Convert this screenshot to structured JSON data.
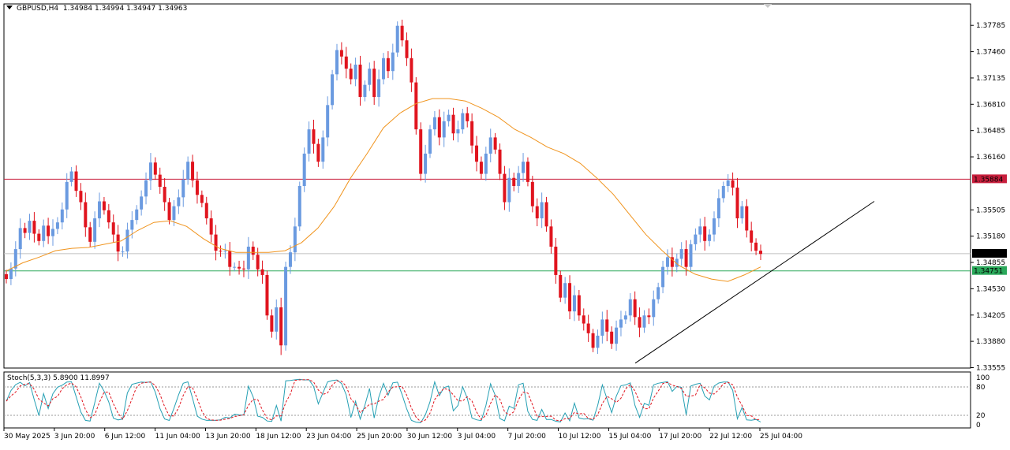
{
  "header": {
    "symbol": "GBPUSD,H4",
    "ohlc": "1.34984 1.34994 1.34947 1.34963"
  },
  "stoch_label": "Stoch(5,3,3) 5.8900 11.8997",
  "colors": {
    "bull": "#6a9ae0",
    "bear": "#e0141e",
    "ma": "#f0941e",
    "resistance": "#c81e3c",
    "support": "#2aa85a",
    "trendline": "#000000",
    "stoch_main": "#26a0b4",
    "stoch_signal": "#e0141e",
    "current_price": "#c0c0c0"
  },
  "chart_data": {
    "type": "candlestick",
    "symbol": "GBPUSD",
    "timeframe": "H4",
    "price_axis_ticks": [
      "1.37785",
      "1.37460",
      "1.37135",
      "1.36810",
      "1.36485",
      "1.36160",
      "1.35505",
      "1.35180",
      "1.34855",
      "1.34530",
      "1.34205",
      "1.33880",
      "1.33555"
    ],
    "price_range": [
      1.3355,
      1.3805
    ],
    "time_labels": [
      "30 May 2025",
      "3 Jun 20:00",
      "6 Jun 12:00",
      "11 Jun 04:00",
      "13 Jun 20:00",
      "18 Jun 12:00",
      "23 Jun 04:00",
      "25 Jun 20:00",
      "30 Jun 12:00",
      "3 Jul 04:00",
      "7 Jul 20:00",
      "10 Jul 12:00",
      "15 Jul 04:00",
      "17 Jul 20:00",
      "22 Jul 12:00",
      "25 Jul 04:00"
    ],
    "horizontal_levels": [
      {
        "name": "resistance",
        "price": 1.35884,
        "label": "1.35884"
      },
      {
        "name": "current",
        "price": 1.34963,
        "label": "1.34963"
      },
      {
        "name": "support",
        "price": 1.34751,
        "label": "1.34751"
      }
    ],
    "trendline": {
      "from": {
        "time": "15 Jul 04:00",
        "price": 1.3361
      },
      "to": {
        "time": "25 Jul",
        "price": 1.3561
      }
    },
    "candle_closes": [
      1.3465,
      1.3478,
      1.3502,
      1.3528,
      1.3522,
      1.3537,
      1.3521,
      1.3512,
      1.3531,
      1.3518,
      1.3527,
      1.3535,
      1.3551,
      1.3585,
      1.3598,
      1.3574,
      1.356,
      1.3529,
      1.3511,
      1.354,
      1.3561,
      1.355,
      1.3535,
      1.352,
      1.3499,
      1.3499,
      1.3526,
      1.3538,
      1.3551,
      1.3567,
      1.3587,
      1.3609,
      1.3594,
      1.3579,
      1.356,
      1.3538,
      1.3555,
      1.3566,
      1.3588,
      1.361,
      1.3587,
      1.3569,
      1.3559,
      1.354,
      1.352,
      1.35,
      1.3499,
      1.35,
      1.348,
      1.348,
      1.3478,
      1.3477,
      1.3505,
      1.3495,
      1.3477,
      1.347,
      1.342,
      1.34,
      1.343,
      1.3383,
      1.348,
      1.3498,
      1.353,
      1.358,
      1.362,
      1.365,
      1.3632,
      1.361,
      1.364,
      1.368,
      1.3718,
      1.3748,
      1.374,
      1.3725,
      1.3712,
      1.373,
      1.369,
      1.3705,
      1.3725,
      1.369,
      1.3712,
      1.3738,
      1.3722,
      1.3745,
      1.3778,
      1.376,
      1.3738,
      1.3708,
      1.365,
      1.3595,
      1.362,
      1.365,
      1.3665,
      1.364,
      1.366,
      1.3668,
      1.3645,
      1.365,
      1.367,
      1.366,
      1.363,
      1.361,
      1.3595,
      1.362,
      1.364,
      1.3625,
      1.3595,
      1.356,
      1.359,
      1.358,
      1.3596,
      1.361,
      1.3585,
      1.3555,
      1.354,
      1.356,
      1.353,
      1.3505,
      1.347,
      1.3442,
      1.346,
      1.3425,
      1.3445,
      1.342,
      1.341,
      1.3398,
      1.338,
      1.3395,
      1.3415,
      1.34,
      1.3385,
      1.3405,
      1.3415,
      1.342,
      1.344,
      1.3418,
      1.3405,
      1.342,
      1.3418,
      1.344,
      1.3455,
      1.348,
      1.3492,
      1.348,
      1.349,
      1.3502,
      1.348,
      1.3508,
      1.352,
      1.353,
      1.3512,
      1.352,
      1.354,
      1.3565,
      1.358,
      1.3587,
      1.3578,
      1.354,
      1.3555,
      1.3525,
      1.351,
      1.35,
      1.3496
    ],
    "moving_average": [
      1.3475,
      1.3485,
      1.3492,
      1.35,
      1.3503,
      1.3504,
      1.3508,
      1.3512,
      1.3525,
      1.3535,
      1.3537,
      1.353,
      1.3515,
      1.3503,
      1.3498,
      1.3498,
      1.3498,
      1.35,
      1.351,
      1.3528,
      1.3555,
      1.359,
      1.362,
      1.3652,
      1.367,
      1.3682,
      1.3688,
      1.3688,
      1.3685,
      1.3676,
      1.3665,
      1.365,
      1.364,
      1.3628,
      1.362,
      1.3608,
      1.359,
      1.357,
      1.3545,
      1.352,
      1.35,
      1.3482,
      1.3471,
      1.3465,
      1.3462,
      1.347,
      1.348
    ],
    "stochastic": {
      "label": "Stoch(5,3,3)",
      "main": 5.89,
      "signal": 11.8997,
      "levels": [
        20,
        80
      ],
      "range": [
        0,
        100
      ],
      "axis_ticks": [
        "100",
        "80",
        "20",
        "0"
      ]
    },
    "current_price": 1.34963
  }
}
